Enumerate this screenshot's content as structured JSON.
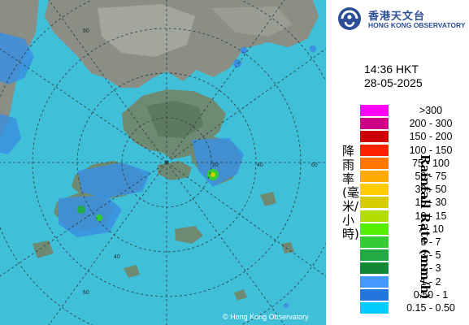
{
  "header": {
    "org_name_zh": "香港天文台",
    "org_name_en": "HONG KONG OBSERVATORY",
    "logo_icon": "hko-logo-icon"
  },
  "timestamp": {
    "time": "14:36 HKT",
    "date": "28-05-2025"
  },
  "legend": {
    "title_zh": "降雨率(毫米/小時)",
    "title_en": "Rainfall Rate (mm/h)",
    "items": [
      {
        "label": ">300",
        "color": "#ff00ff"
      },
      {
        "label": "200 - 300",
        "color": "#cc0088"
      },
      {
        "label": "150 - 200",
        "color": "#cc0000"
      },
      {
        "label": "100 - 150",
        "color": "#ff2200"
      },
      {
        "label": "75 - 100",
        "color": "#ff7700"
      },
      {
        "label": "50 - 75",
        "color": "#ffaa00"
      },
      {
        "label": "30 - 50",
        "color": "#ffcc00"
      },
      {
        "label": "15 - 30",
        "color": "#d6cc00"
      },
      {
        "label": "10 - 15",
        "color": "#b3dd00"
      },
      {
        "label": "7 - 10",
        "color": "#55ee00"
      },
      {
        "label": "5 - 7",
        "color": "#33cc33"
      },
      {
        "label": "3 - 5",
        "color": "#22aa44"
      },
      {
        "label": "2 - 3",
        "color": "#118833"
      },
      {
        "label": "1 - 2",
        "color": "#4499ff"
      },
      {
        "label": "0.50 - 1",
        "color": "#2277dd"
      },
      {
        "label": "0.15 - 0.50",
        "color": "#00ccff"
      }
    ]
  },
  "map": {
    "range_ring_labels": [
      "60",
      "60",
      "40",
      "20",
      "60",
      "40"
    ],
    "copyright": "© Hong Kong Observatory",
    "sea_color": "#3fc0d8",
    "land_color": "#8a8e84"
  }
}
